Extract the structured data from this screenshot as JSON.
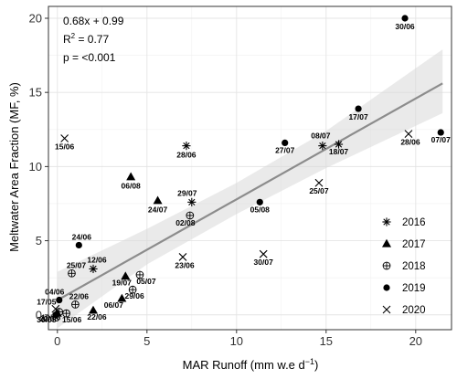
{
  "chart_data": {
    "type": "scatter",
    "xlabel_main": "MAR Runoff (mm w.e d",
    "xlabel_sup": "−1",
    "xlabel_end": ")",
    "ylabel": "Meltwater Area Fraction (MF, %)",
    "xlim": [
      -0.5,
      22
    ],
    "ylim": [
      -1,
      20.8
    ],
    "x_ticks": [
      0,
      5,
      10,
      15,
      20
    ],
    "y_ticks": [
      0,
      5,
      10,
      15,
      20
    ],
    "x_tick_labels": [
      "0",
      "5",
      "10",
      "15",
      "20"
    ],
    "y_tick_labels": [
      "0",
      "5",
      "10",
      "15",
      "20"
    ],
    "grid": true,
    "regression": {
      "slope": 0.68,
      "intercept": 0.99,
      "x_range": [
        0,
        21.5
      ],
      "band": [
        [
          0,
          -0.9,
          2.9
        ],
        [
          5,
          3.4,
          5.8
        ],
        [
          10,
          6.8,
          8.9
        ],
        [
          15,
          9.9,
          12.4
        ],
        [
          21.5,
          13.6,
          17.9
        ]
      ],
      "equation": "0.68x + 0.99",
      "r2_label": "R",
      "r2_sup": "2",
      "r2_value": " = 0.77",
      "p_text": "p = <0.001"
    },
    "legend_position": "bottom-right",
    "series": [
      {
        "name": "2016",
        "marker": "asterisk",
        "points": [
          {
            "x": 7.2,
            "y": 11.4,
            "label": "28/06"
          },
          {
            "x": 7.5,
            "y": 7.6,
            "label": "29/07"
          },
          {
            "x": 14.8,
            "y": 11.4,
            "label": "08/07"
          },
          {
            "x": 15.7,
            "y": 11.5,
            "label": "18/07"
          },
          {
            "x": 2.0,
            "y": 3.1,
            "label": "12/06"
          }
        ]
      },
      {
        "name": "2017",
        "marker": "triangle",
        "points": [
          {
            "x": 4.1,
            "y": 9.3,
            "label": "06/08"
          },
          {
            "x": 5.6,
            "y": 7.7,
            "label": "24/07"
          },
          {
            "x": 3.8,
            "y": 2.6,
            "label": "19/07"
          },
          {
            "x": 3.6,
            "y": 1.1,
            "label": "06/07"
          },
          {
            "x": 2.0,
            "y": 0.3,
            "label": "22/06"
          },
          {
            "x": 0.0,
            "y": 0.1,
            "label": "22/05"
          }
        ]
      },
      {
        "name": "2018",
        "marker": "circle-plus",
        "points": [
          {
            "x": 7.4,
            "y": 6.7,
            "label": "02/08"
          },
          {
            "x": 0.8,
            "y": 2.8,
            "label": "25/07"
          },
          {
            "x": 4.6,
            "y": 2.7,
            "label": "05/07"
          },
          {
            "x": 4.2,
            "y": 1.7,
            "label": "29/06"
          },
          {
            "x": 1.0,
            "y": 0.7,
            "label": "22/06"
          },
          {
            "x": 0.5,
            "y": 0.1,
            "label": "15/06"
          },
          {
            "x": 0.1,
            "y": 0.2,
            "label": "10/06"
          }
        ]
      },
      {
        "name": "2019",
        "marker": "circle",
        "points": [
          {
            "x": 19.4,
            "y": 20.0,
            "label": "30/06"
          },
          {
            "x": 16.8,
            "y": 13.9,
            "label": "17/07"
          },
          {
            "x": 21.4,
            "y": 12.3,
            "label": "07/07"
          },
          {
            "x": 12.7,
            "y": 11.6,
            "label": "27/07"
          },
          {
            "x": 11.3,
            "y": 7.6,
            "label": "05/08"
          },
          {
            "x": 1.2,
            "y": 4.7,
            "label": "24/06"
          },
          {
            "x": 0.1,
            "y": 1.0,
            "label": "04/06"
          },
          {
            "x": -0.1,
            "y": 0.0,
            "label": "30/05"
          }
        ]
      },
      {
        "name": "2020",
        "marker": "x",
        "points": [
          {
            "x": 0.4,
            "y": 11.9,
            "label": "15/06"
          },
          {
            "x": 19.6,
            "y": 12.2,
            "label": "28/06"
          },
          {
            "x": 14.6,
            "y": 8.9,
            "label": "25/07"
          },
          {
            "x": 7.0,
            "y": 3.9,
            "label": "23/06"
          },
          {
            "x": 11.5,
            "y": 4.1,
            "label": "30/07"
          },
          {
            "x": -0.1,
            "y": 0.4,
            "label": "17/05"
          }
        ]
      }
    ]
  }
}
